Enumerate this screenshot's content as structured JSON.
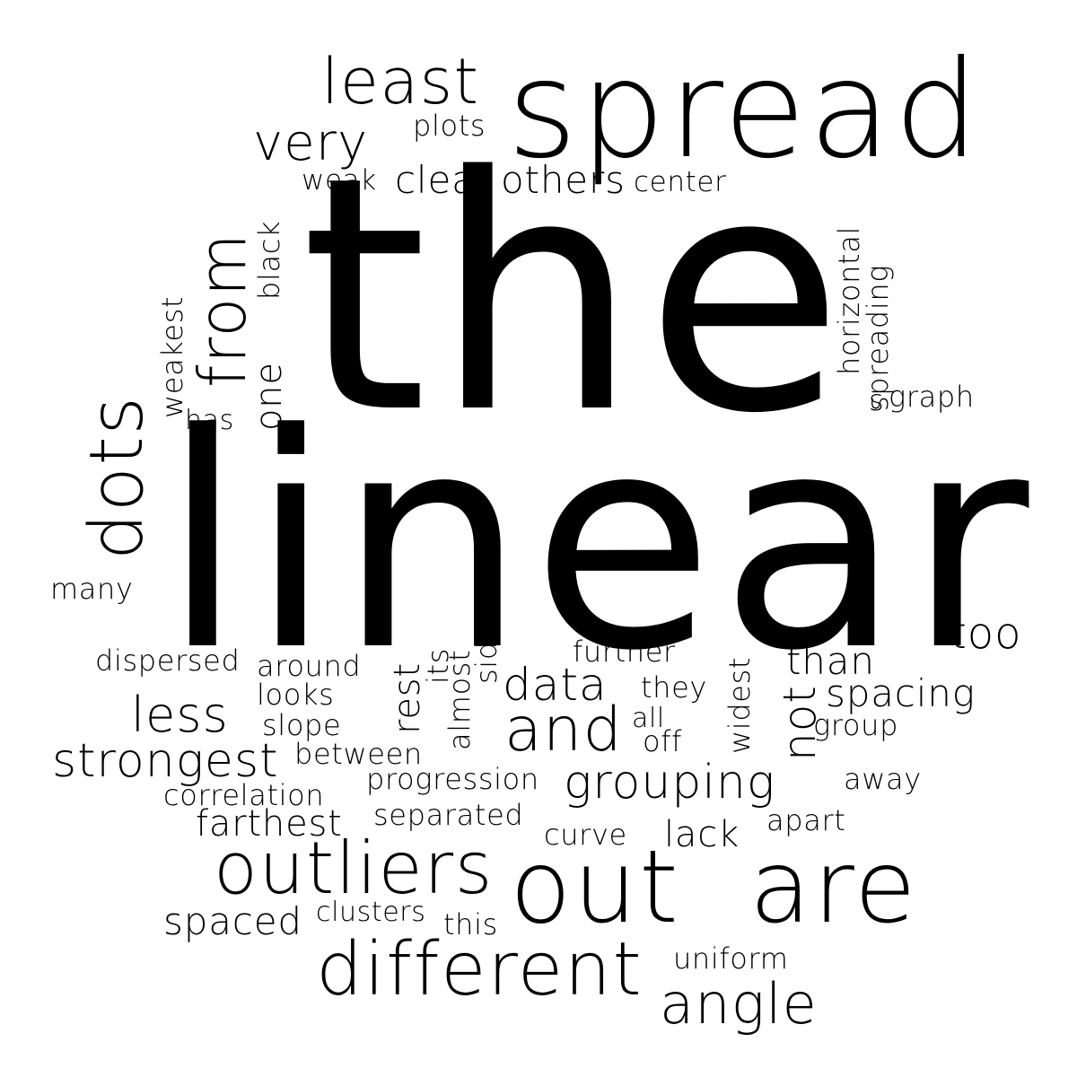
{
  "words": {
    "the": "the",
    "linear": "linear",
    "spread": "spread",
    "out": "out",
    "are": "are",
    "different": "different",
    "outliers": "outliers",
    "least": "least",
    "very": "very",
    "plots": "plots",
    "weak": "weak",
    "clear": "clear",
    "others": "others",
    "center": "center",
    "from": "from",
    "dots": "dots",
    "black": "black",
    "weakest": "weakest",
    "one": "one",
    "has": "has",
    "horizontal": "horizontal",
    "spreading": "spreading",
    "graph": "graph",
    "s": "s",
    "many": "many",
    "too": "too",
    "dispersed": "dispersed",
    "around": "around",
    "looks": "looks",
    "less": "less",
    "slope": "slope",
    "strongest": "strongest",
    "between": "between",
    "correlation": "correlation",
    "farthest": "farthest",
    "progression": "progression",
    "separated": "separated",
    "rest": "rest",
    "its": "its",
    "almost": "almost",
    "side": "side",
    "data": "data",
    "and": "and",
    "further": "further",
    "they": "they",
    "all": "all",
    "off": "off",
    "widest": "widest",
    "not": "not",
    "than": "than",
    "spacing": "spacing",
    "group": "group",
    "grouping": "grouping",
    "away": "away",
    "apart": "apart",
    "curve": "curve",
    "lack": "lack",
    "spaced": "spaced",
    "clusters": "clusters",
    "this": "this",
    "uniform": "uniform",
    "angle": "angle"
  }
}
